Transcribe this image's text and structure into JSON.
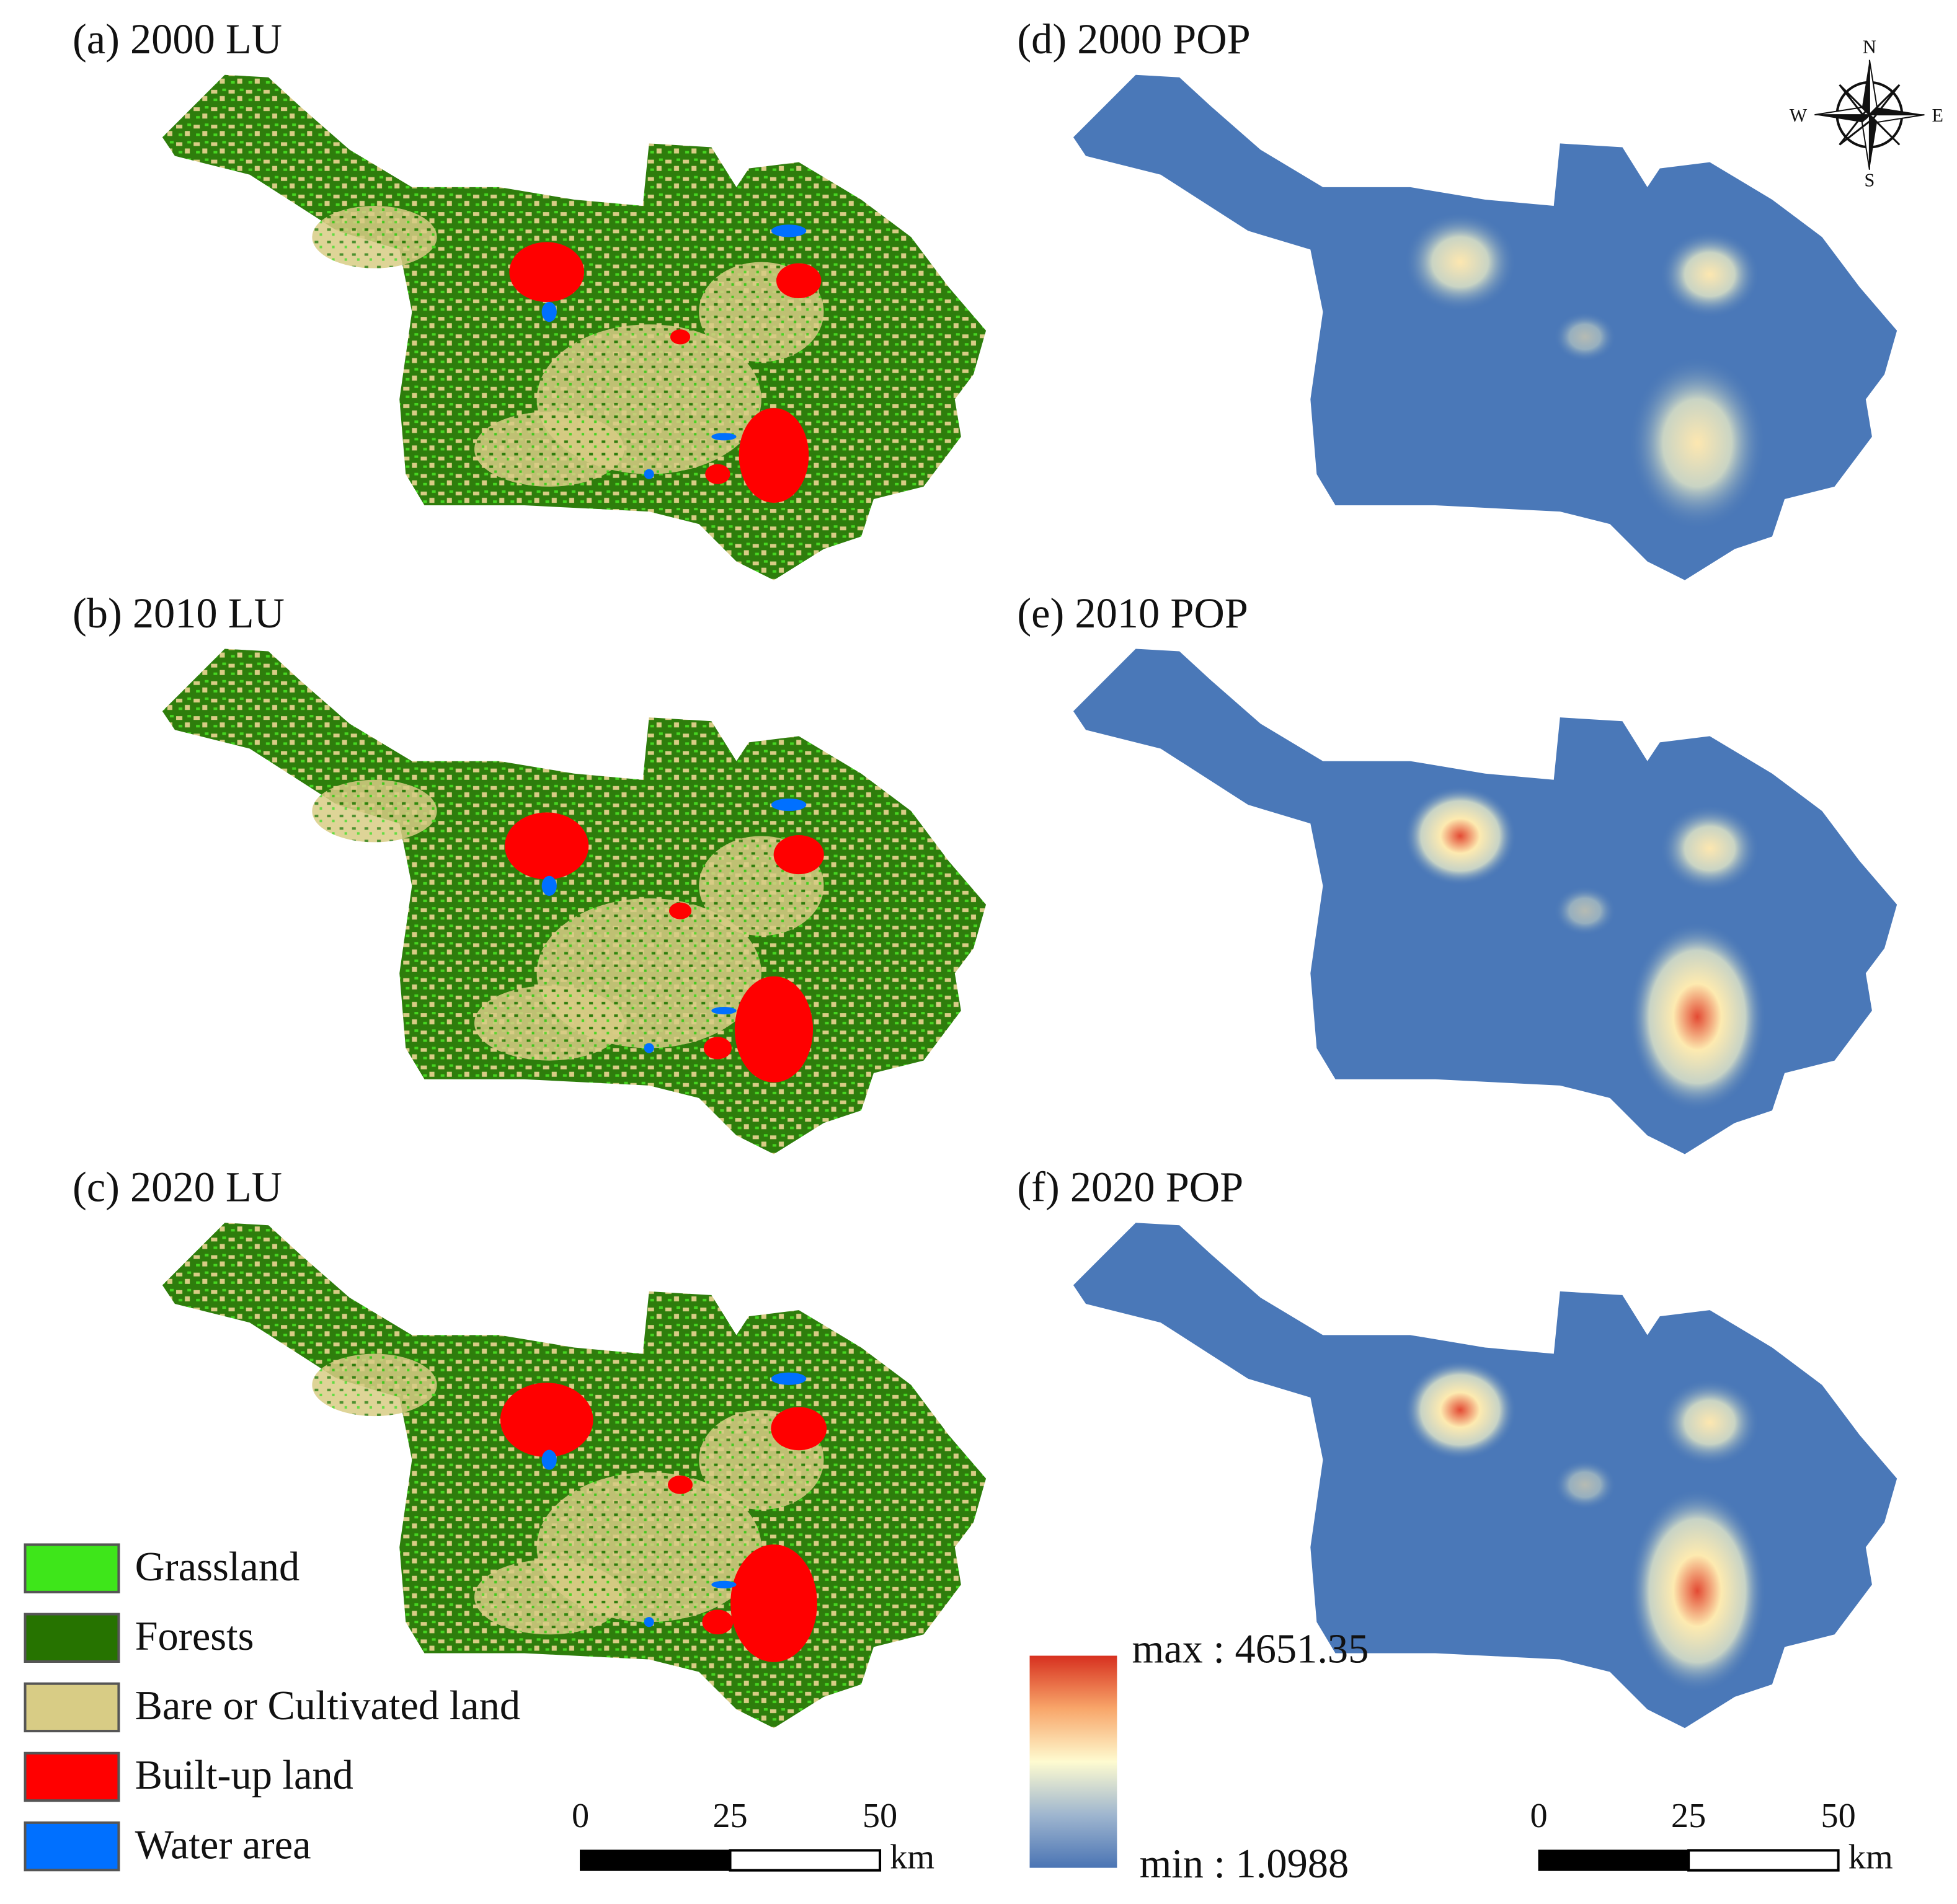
{
  "panels": [
    {
      "title": "(a) 2000 LU"
    },
    {
      "title": "(b) 2010 LU"
    },
    {
      "title": "(c) 2020 LU"
    },
    {
      "title": "(d) 2000 POP"
    },
    {
      "title": "(e) 2010 POP"
    },
    {
      "title": "(f) 2020 POP"
    }
  ],
  "legend": [
    {
      "label": "Grassland",
      "color": "#3ee61a"
    },
    {
      "label": "Forests",
      "color": "#267300"
    },
    {
      "label": "Bare or Cultivated land",
      "color": "#d8cc85"
    },
    {
      "label": "Built-up land",
      "color": "#ff0000"
    },
    {
      "label": "Water area",
      "color": "#0070ff"
    }
  ],
  "colorbar": {
    "max_label": "max : 4651.35",
    "min_label": "min : 1.0988"
  },
  "scale_bars": [
    {
      "labels": [
        "0",
        "25",
        "50"
      ],
      "unit": "km"
    },
    {
      "labels": [
        "0",
        "25",
        "50"
      ],
      "unit": "km"
    }
  ],
  "compass": {
    "n": "N",
    "e": "E",
    "s": "S",
    "w": "W"
  }
}
